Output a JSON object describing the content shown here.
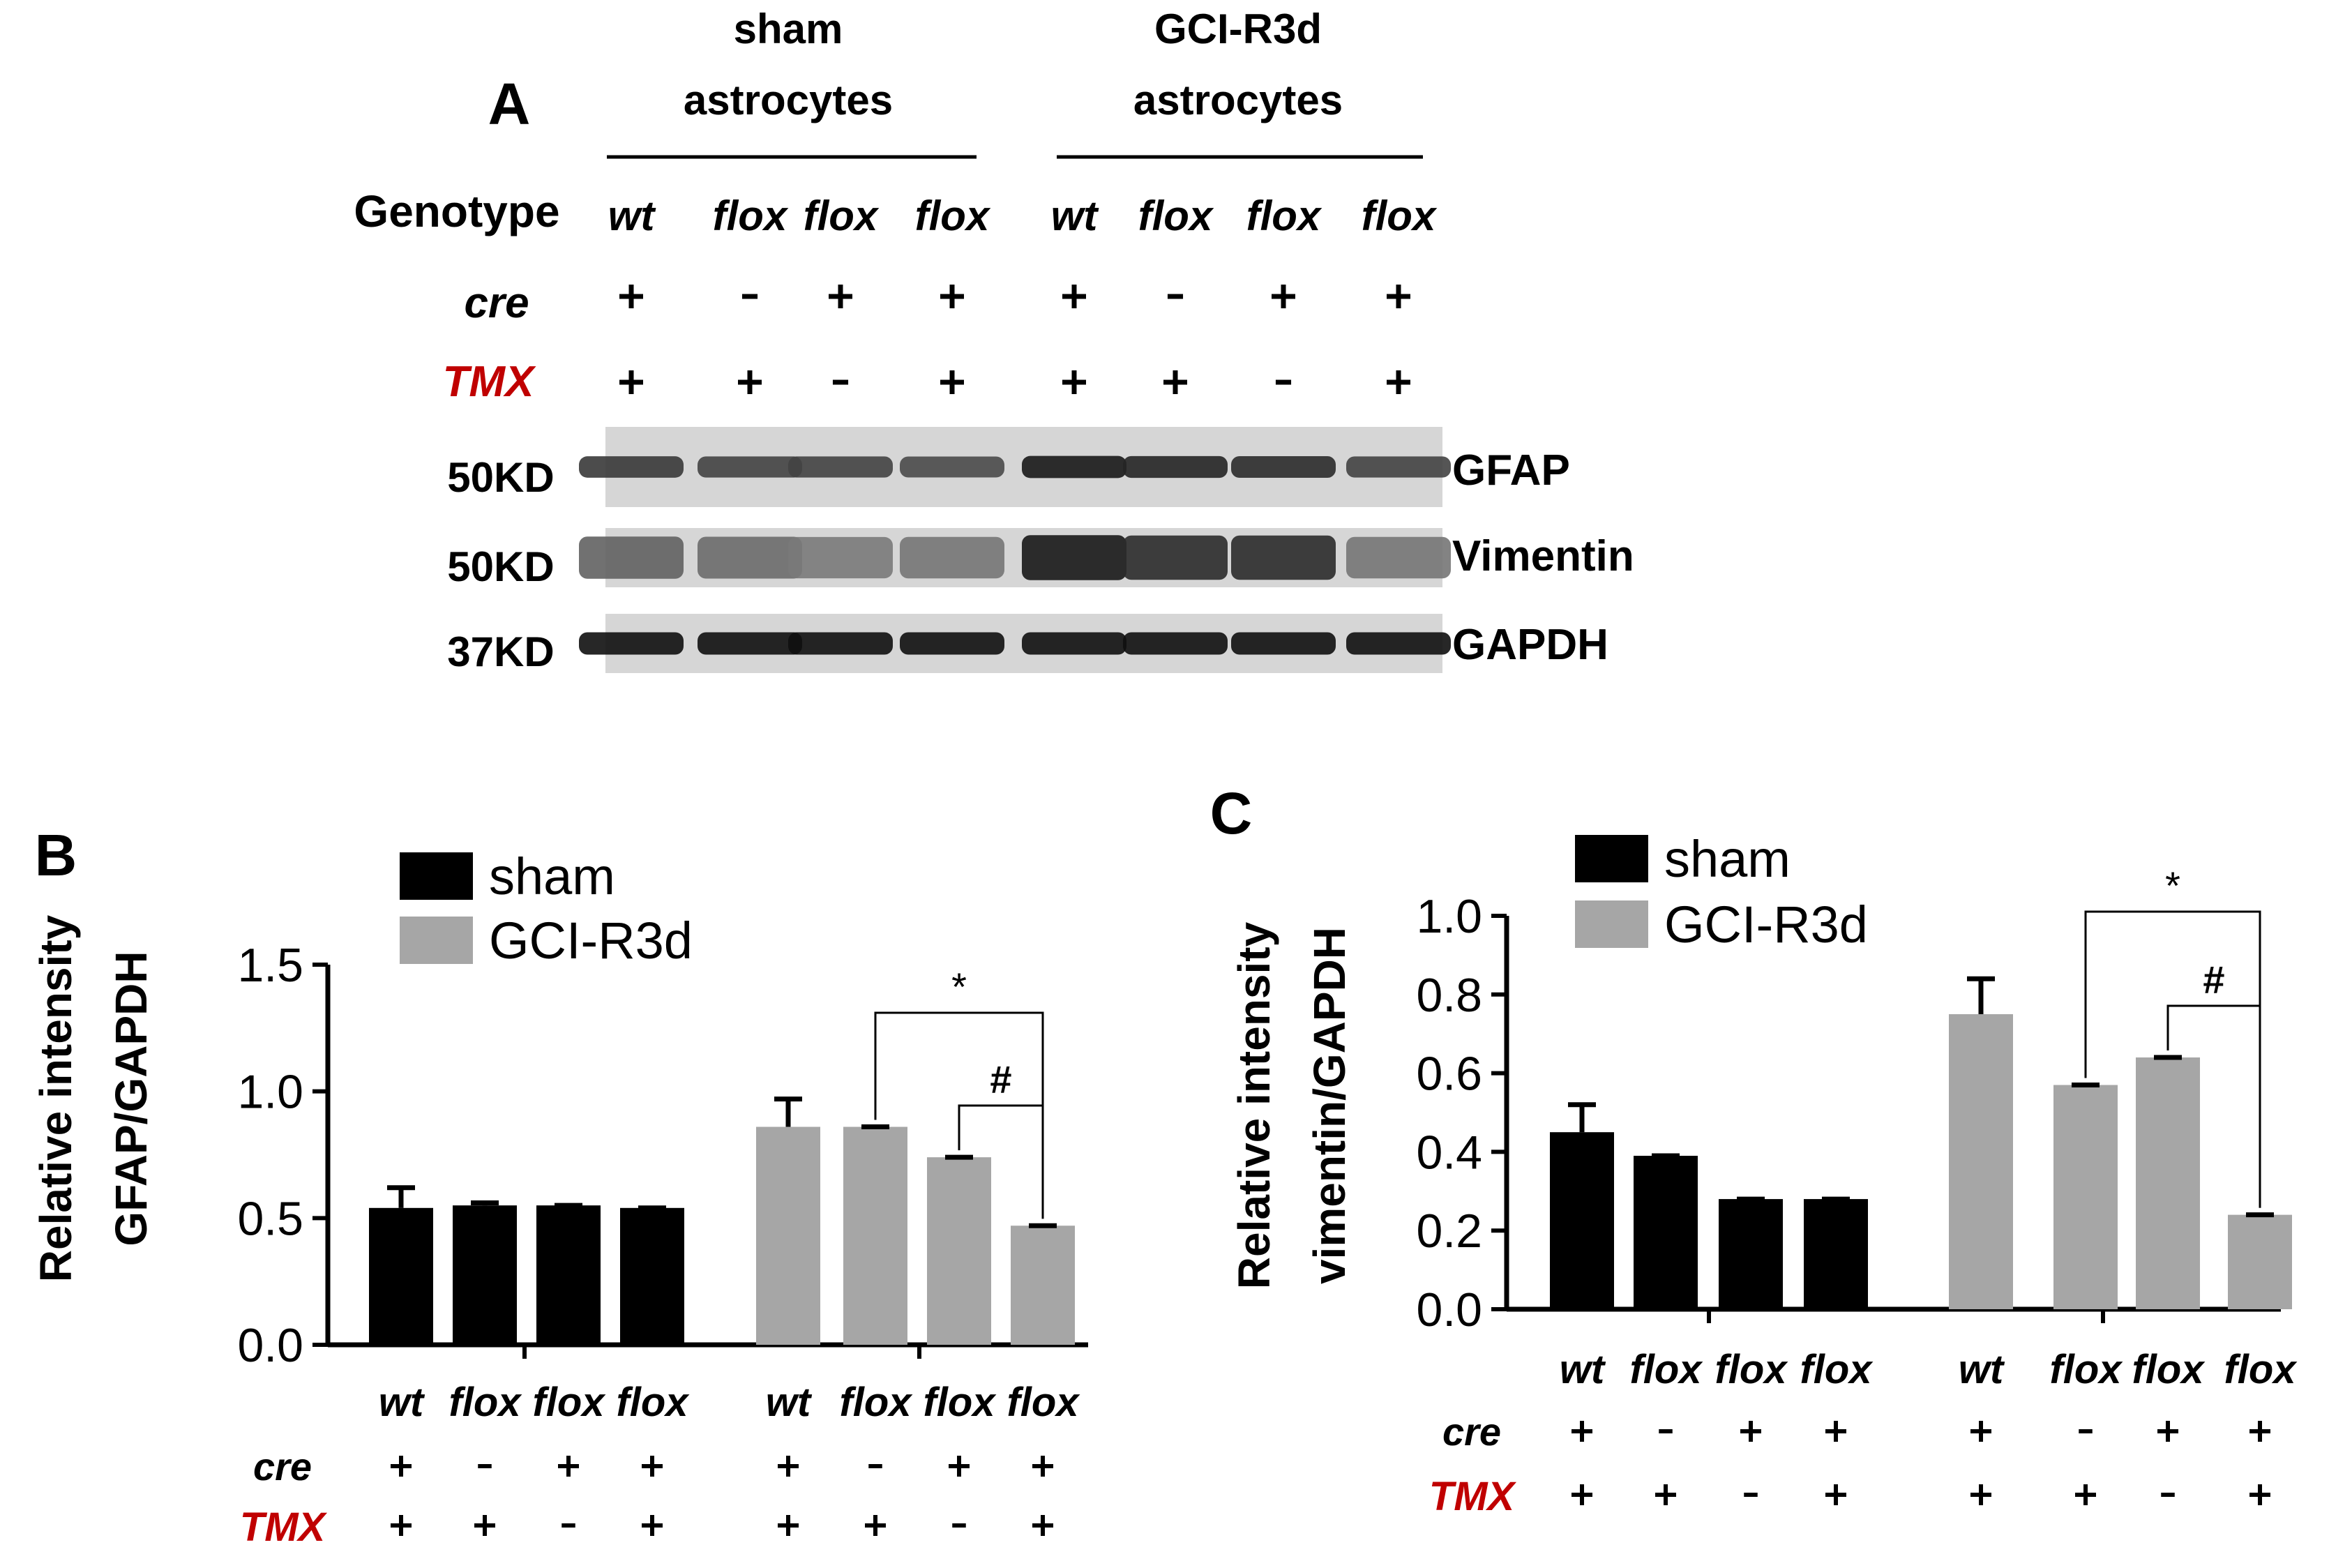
{
  "panel_a": {
    "label": "A",
    "groups": [
      {
        "line1": "sham",
        "line2": "astrocytes"
      },
      {
        "line1": "GCI-R3d",
        "line2": "astrocytes"
      }
    ],
    "row_labels": {
      "genotype": "Genotype",
      "cre": "cre",
      "tmx": "TMX"
    },
    "genotype": [
      "wt",
      "flox",
      "flox",
      "flox",
      "wt",
      "flox",
      "flox",
      "flox"
    ],
    "cre": [
      "+",
      "-",
      "+",
      "+",
      "+",
      "-",
      "+",
      "+"
    ],
    "tmx": [
      "+",
      "+",
      "-",
      "+",
      "+",
      "+",
      "-",
      "+"
    ],
    "blots": [
      {
        "name": "GFAP",
        "mw": "50KD",
        "intensities": [
          0.78,
          0.72,
          0.72,
          0.68,
          0.95,
          0.88,
          0.85,
          0.72
        ]
      },
      {
        "name": "Vimentin",
        "mw": "50KD",
        "intensities": [
          0.55,
          0.5,
          0.42,
          0.45,
          0.95,
          0.85,
          0.85,
          0.45
        ]
      },
      {
        "name": "GAPDH",
        "mw": "37KD",
        "intensities": [
          1,
          1,
          1,
          1,
          1,
          1,
          1,
          1
        ]
      }
    ]
  },
  "colors": {
    "sham": "#000000",
    "gci": "#a6a6a6",
    "tmx": "#c00000"
  },
  "chart_data": [
    {
      "panel": "B",
      "type": "bar",
      "ylabel_line1": "Relative intensity",
      "ylabel_line2": "GFAP/GAPDH",
      "ylim": [
        0,
        1.5
      ],
      "ticks": [
        "0.0",
        "0.5",
        "1.0",
        "1.5"
      ],
      "tick_values": [
        0,
        0.5,
        1.0,
        1.5
      ],
      "legend": [
        "sham",
        "GCI-R3d"
      ],
      "series": [
        {
          "name": "sham",
          "values": [
            0.54,
            0.55,
            0.55,
            0.54
          ],
          "errors": [
            0.08,
            0.01,
            0.0,
            0.0
          ]
        },
        {
          "name": "GCI-R3d",
          "values": [
            0.86,
            0.86,
            0.74,
            0.47
          ],
          "errors": [
            0.11,
            0.0,
            0.0,
            0.0
          ]
        }
      ],
      "genotype": [
        "wt",
        "flox",
        "flox",
        "flox",
        "wt",
        "flox",
        "flox",
        "flox"
      ],
      "cre": [
        "+",
        "-",
        "+",
        "+",
        "+",
        "-",
        "+",
        "+"
      ],
      "tmx": [
        "+",
        "+",
        "-",
        "+",
        "+",
        "+",
        "-",
        "+"
      ],
      "row_labels": {
        "cre": "cre",
        "tmx": "TMX"
      },
      "annotations": [
        {
          "symbol": "*",
          "from_bar": 5,
          "to_bar": 7
        },
        {
          "symbol": "#",
          "from_bar": 6,
          "to_bar": 7
        }
      ]
    },
    {
      "panel": "C",
      "type": "bar",
      "ylabel_line1": "Relative intensity",
      "ylabel_line2": "vimentin/GAPDH",
      "ylim": [
        0,
        1.0
      ],
      "ticks": [
        "0.0",
        "0.2",
        "0.4",
        "0.6",
        "0.8",
        "1.0"
      ],
      "tick_values": [
        0,
        0.2,
        0.4,
        0.6,
        0.8,
        1.0
      ],
      "legend": [
        "sham",
        "GCI-R3d"
      ],
      "series": [
        {
          "name": "sham",
          "values": [
            0.45,
            0.39,
            0.28,
            0.28
          ],
          "errors": [
            0.07,
            0.0,
            0.0,
            0.0
          ]
        },
        {
          "name": "GCI-R3d",
          "values": [
            0.75,
            0.57,
            0.64,
            0.24
          ],
          "errors": [
            0.09,
            0.0,
            0.0,
            0.0
          ]
        }
      ],
      "genotype": [
        "wt",
        "flox",
        "flox",
        "flox",
        "wt",
        "flox",
        "flox",
        "flox"
      ],
      "cre": [
        "+",
        "-",
        "+",
        "+",
        "+",
        "-",
        "+",
        "+"
      ],
      "tmx": [
        "+",
        "+",
        "-",
        "+",
        "+",
        "+",
        "-",
        "+"
      ],
      "row_labels": {
        "cre": "cre",
        "tmx": "TMX"
      },
      "annotations": [
        {
          "symbol": "*",
          "from_bar": 5,
          "to_bar": 7
        },
        {
          "symbol": "#",
          "from_bar": 6,
          "to_bar": 7
        }
      ]
    }
  ]
}
